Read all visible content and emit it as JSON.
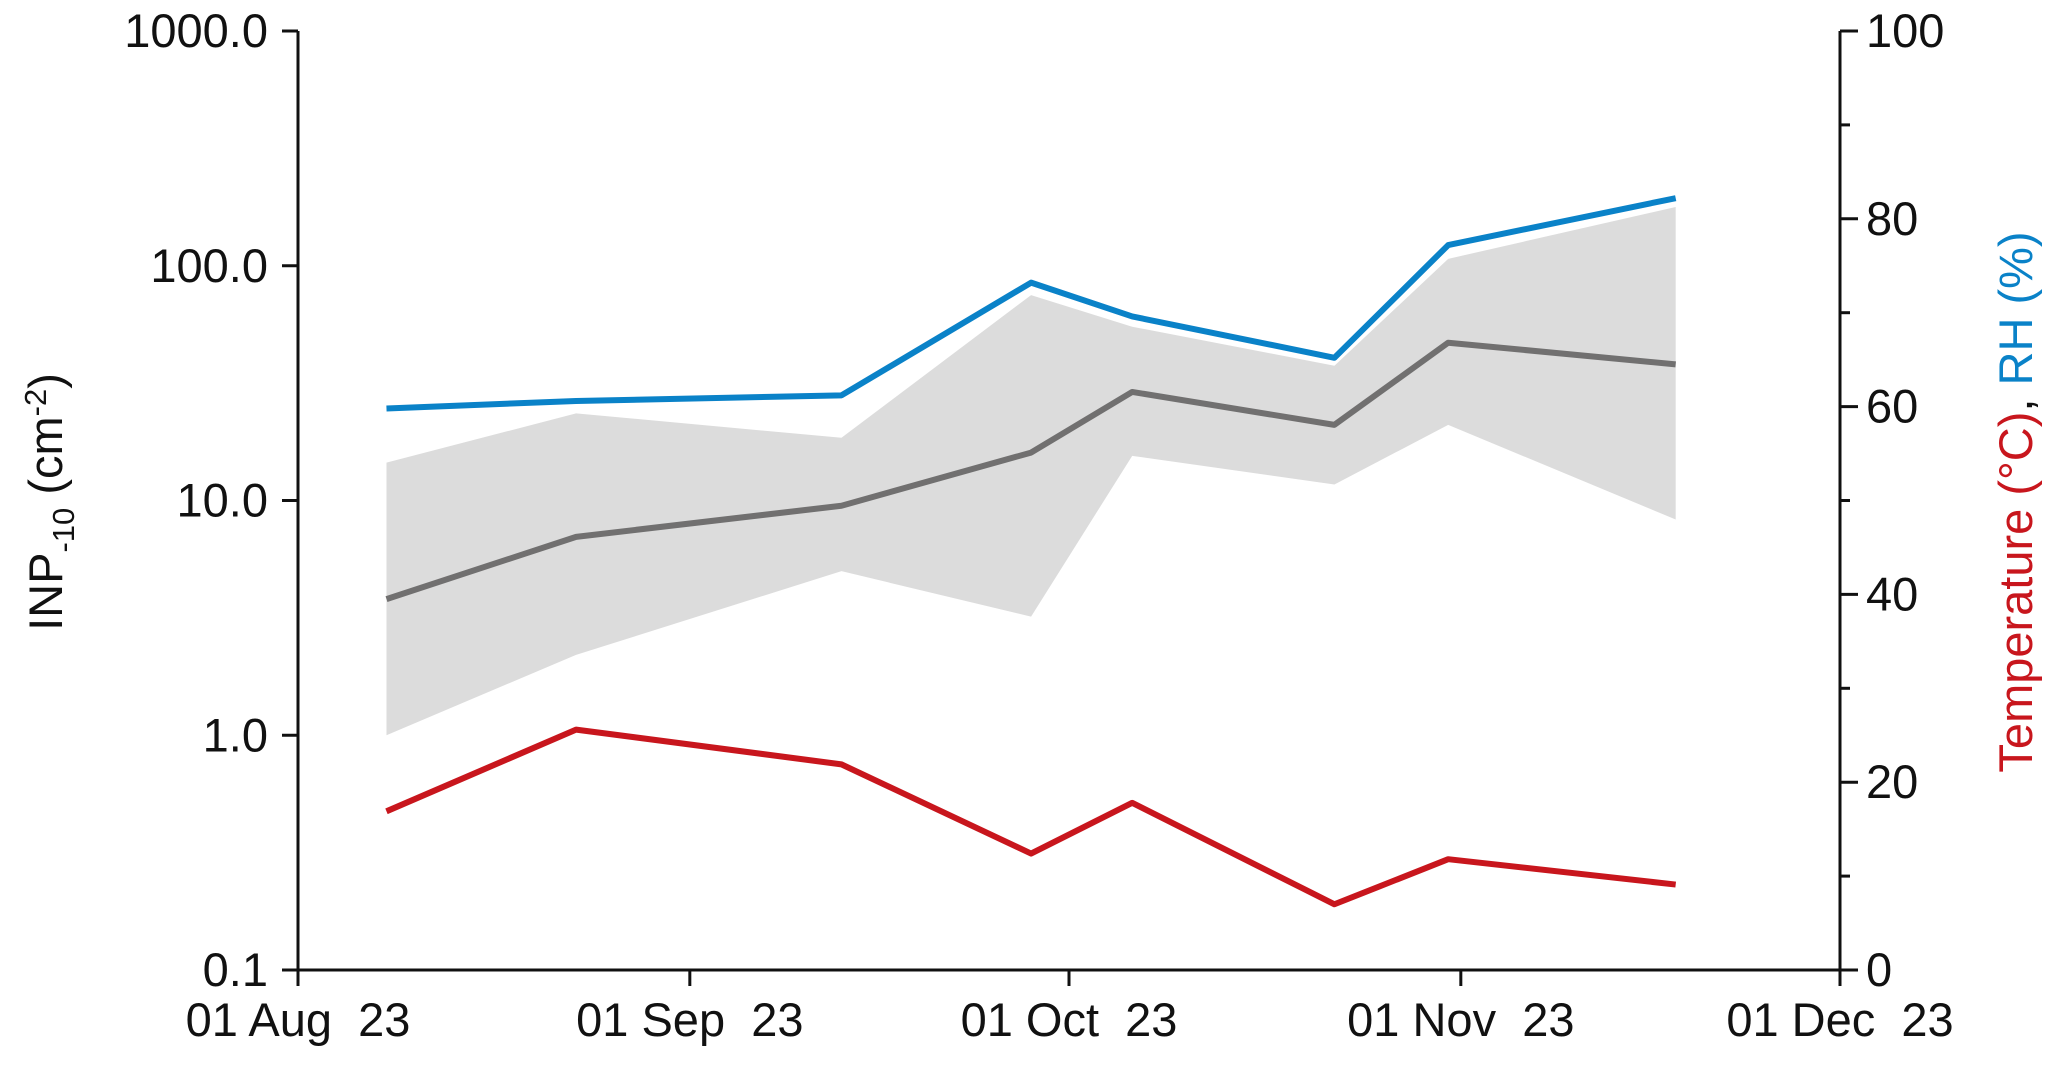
{
  "chart_data": {
    "type": "line",
    "x_dates": [
      "2023-08-08",
      "2023-08-23",
      "2023-09-13",
      "2023-09-28",
      "2023-10-06",
      "2023-10-22",
      "2023-10-31",
      "2023-11-18"
    ],
    "x_ticks": [
      {
        "date": "2023-08-01",
        "label": "01 Aug  23"
      },
      {
        "date": "2023-09-01",
        "label": "01 Sep  23"
      },
      {
        "date": "2023-10-01",
        "label": "01 Oct  23"
      },
      {
        "date": "2023-11-01",
        "label": "01 Nov  23"
      },
      {
        "date": "2023-12-01",
        "label": "01 Dec  23"
      }
    ],
    "xlim": [
      "2023-08-01",
      "2023-12-01"
    ],
    "y_left": {
      "label_main": "INP",
      "label_sub": "-10",
      "label_unit_open": " (cm",
      "label_sup": "-2",
      "label_unit_close": ")",
      "scale": "log",
      "ylim": [
        0.1,
        1000
      ],
      "tick_values": [
        0.1,
        1,
        10,
        100,
        1000
      ],
      "tick_labels": [
        "0.1",
        "1.0",
        "10.0",
        "100.0",
        "1000.0"
      ]
    },
    "y_right": {
      "label_temp": "Temperature (°C)",
      "label_sep": ", ",
      "label_rh": "RH (%)",
      "ylim": [
        0,
        100
      ],
      "tick_values": [
        0,
        20,
        40,
        60,
        80,
        100
      ],
      "tick_labels": [
        "0",
        "20",
        "40",
        "60",
        "80",
        "100"
      ],
      "minor_tick_values": [
        10,
        30,
        50,
        70,
        90
      ]
    },
    "inp_median": [
      3.8,
      7.0,
      9.5,
      16.0,
      29.0,
      21.0,
      47.0,
      38.0
    ],
    "inp_range_upper": [
      14.5,
      23.5,
      18.5,
      75.0,
      55.0,
      37.5,
      107.0,
      178.0
    ],
    "inp_range_lower": [
      1.0,
      2.2,
      5.0,
      3.2,
      15.5,
      11.7,
      21.0,
      8.3
    ],
    "rh": [
      59.8,
      60.6,
      61.2,
      73.2,
      69.6,
      65.2,
      77.2,
      82.2
    ],
    "temperature": [
      16.9,
      25.6,
      21.9,
      12.4,
      17.8,
      7.0,
      11.8,
      9.1
    ],
    "colors": {
      "median": "#717070",
      "range_fill": "#dcdcdc",
      "rh": "#0a82c8",
      "temperature": "#c8161d",
      "axis": "#111111"
    }
  }
}
